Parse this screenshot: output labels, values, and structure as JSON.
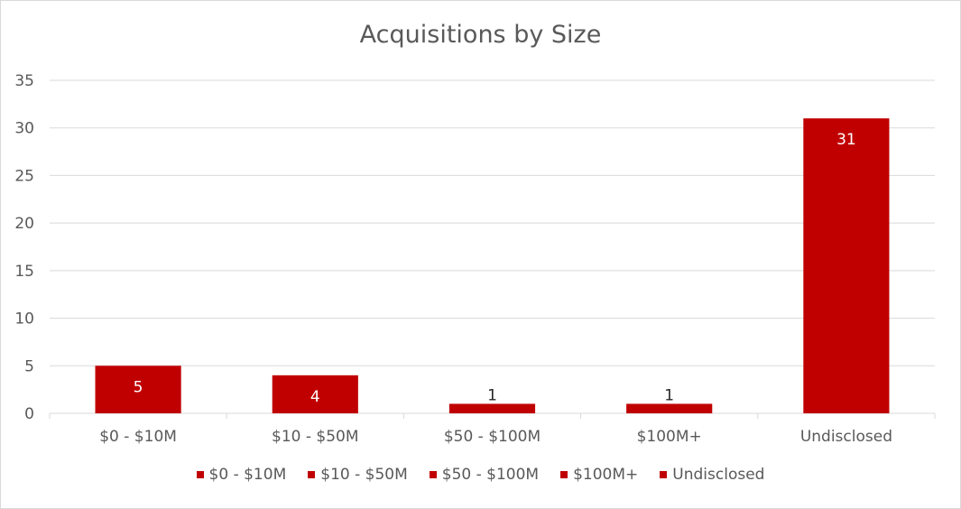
{
  "chart_data": {
    "type": "bar",
    "title": "Acquisitions by Size",
    "xlabel": "",
    "ylabel": "",
    "categories": [
      "$0 - $10M",
      "$10 - $50M",
      "$50 - $100M",
      "$100M+",
      "Undisclosed"
    ],
    "values": [
      5,
      4,
      1,
      1,
      31
    ],
    "ylim": [
      0,
      35
    ],
    "yticks": [
      0,
      5,
      10,
      15,
      20,
      25,
      30,
      35
    ],
    "grid": true,
    "legend_position": "bottom",
    "colors": {
      "bar": "#c00000",
      "grid": "#d9d9d9",
      "text": "#595959",
      "label_inside": "#ffffff",
      "label_outside": "#262626"
    }
  }
}
